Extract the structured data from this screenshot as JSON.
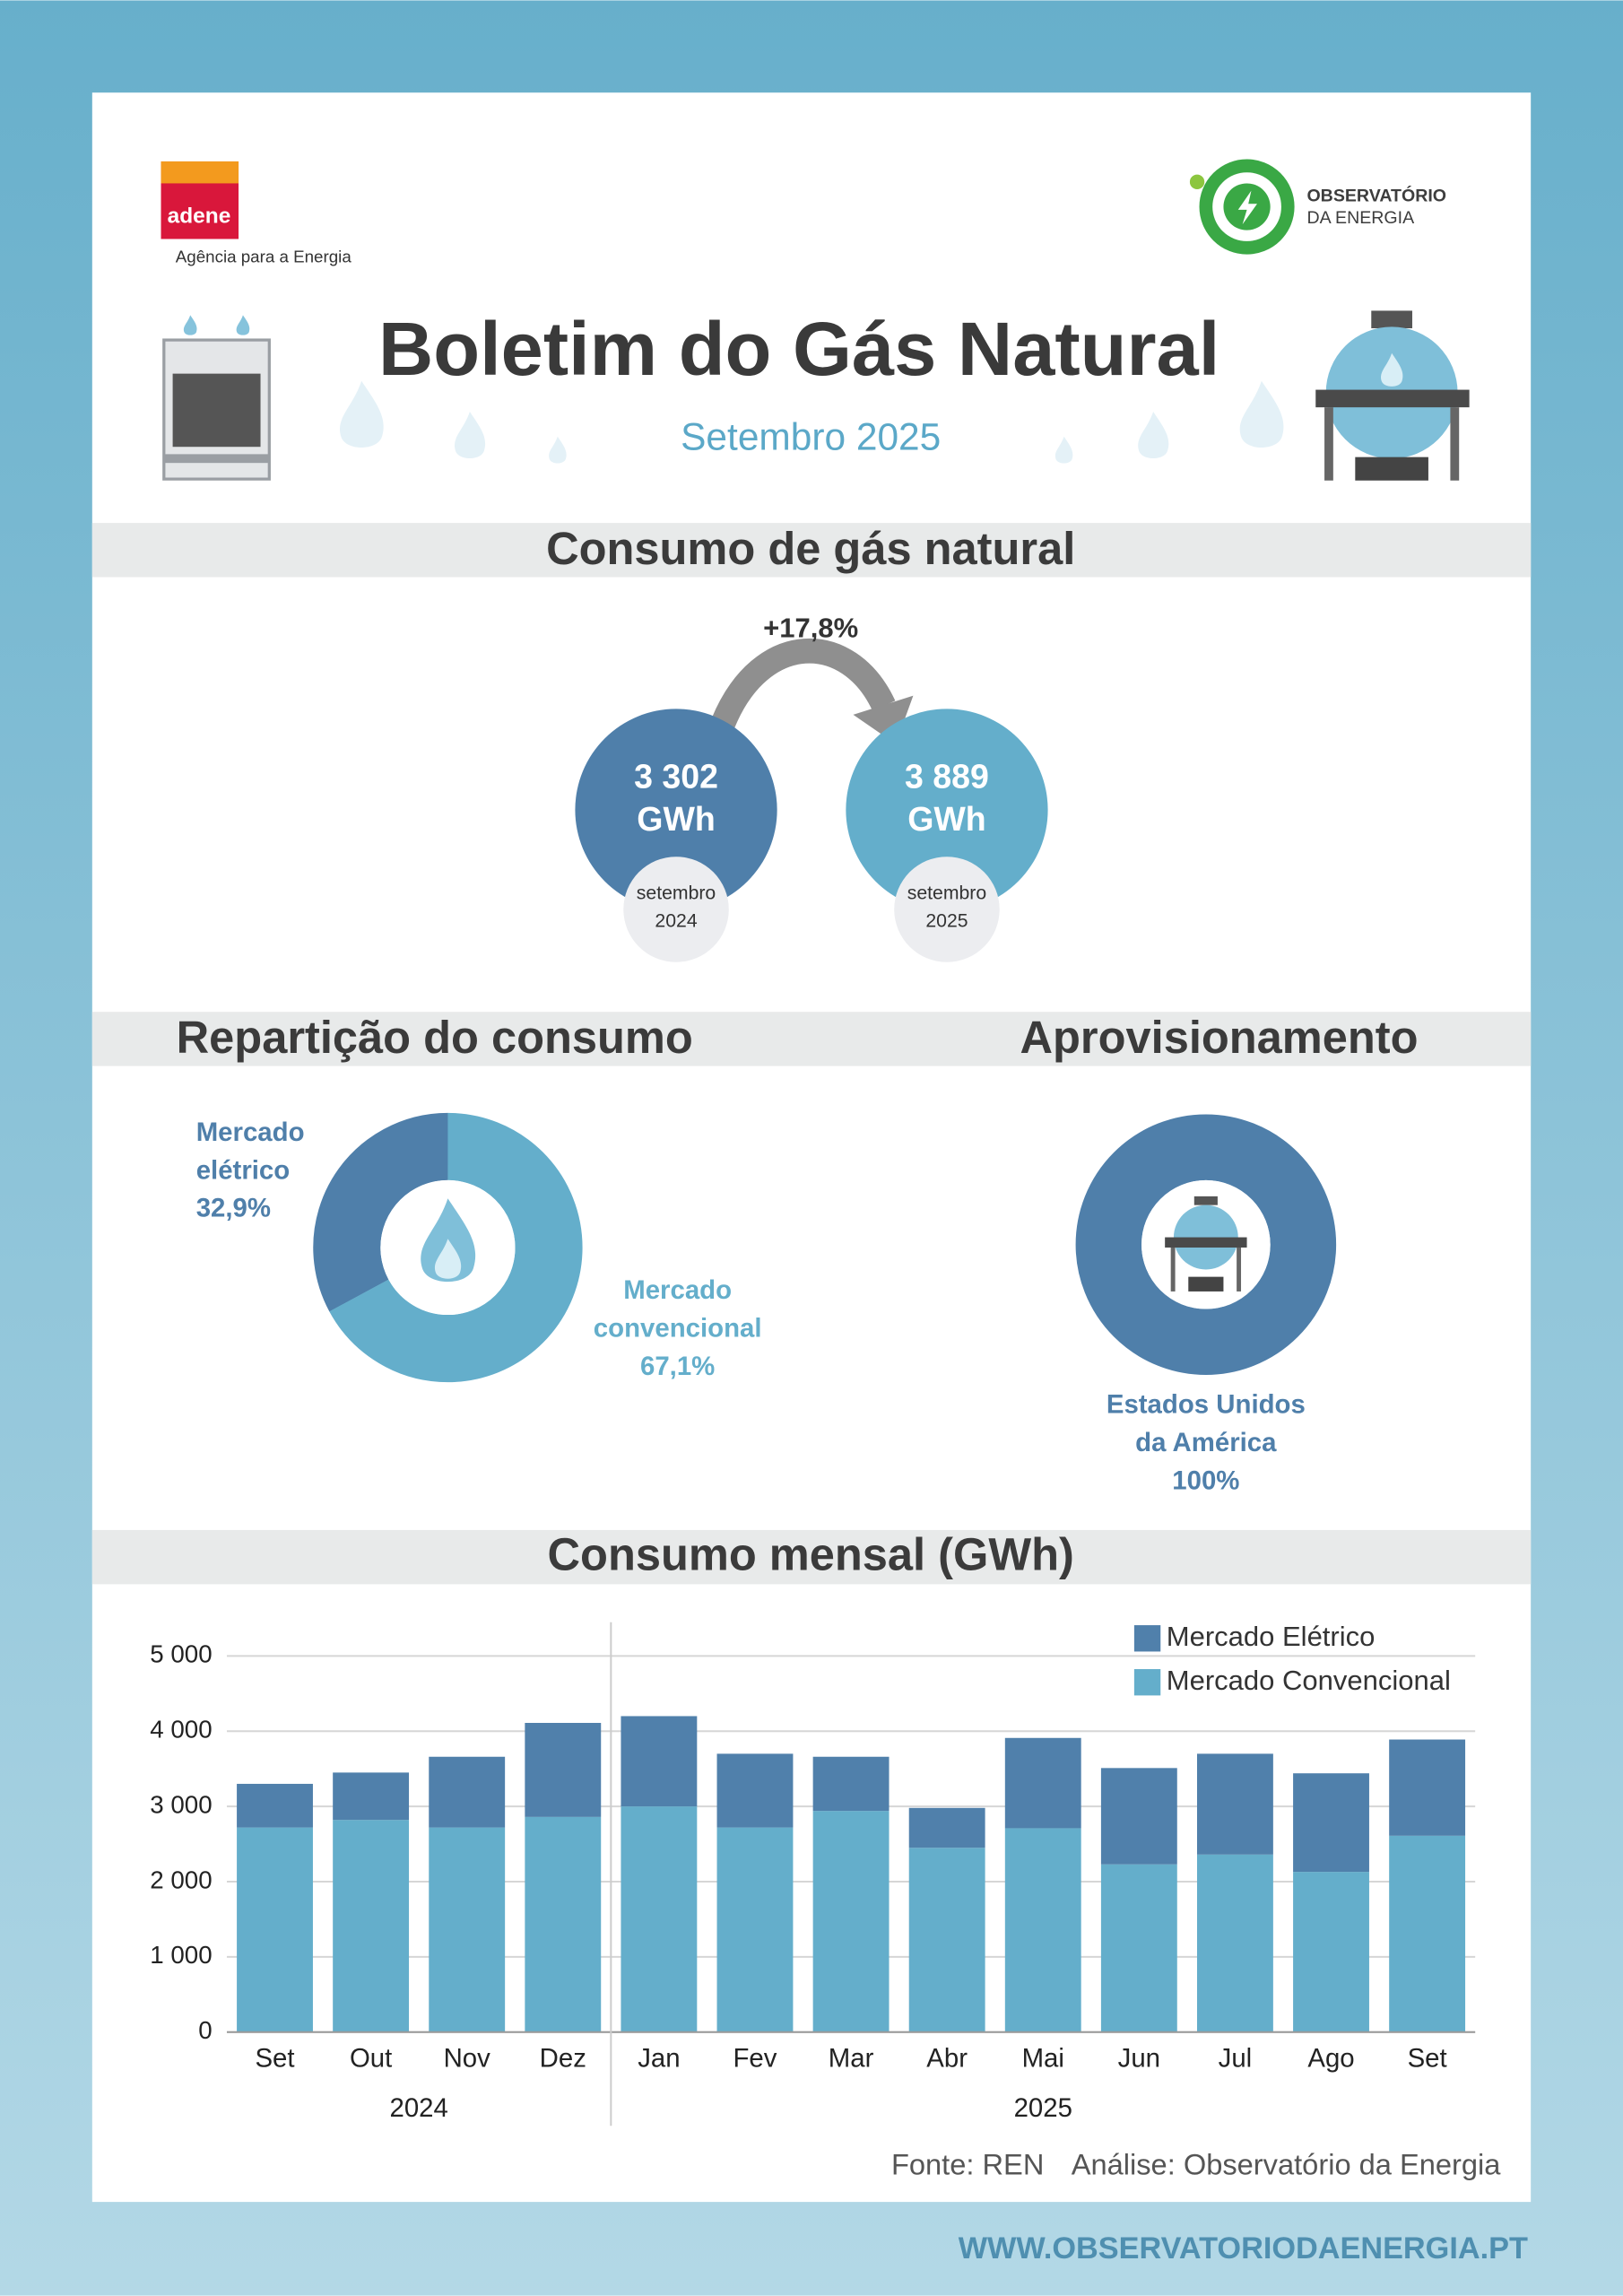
{
  "header": {
    "logo_left": {
      "name": "adene",
      "tagline": "Agência para a Energia"
    },
    "logo_right": {
      "line1": "OBSERVATÓRIO",
      "line2": "DA ENERGIA"
    },
    "title": "Boletim do Gás Natural",
    "subtitle": "Setembro 2025"
  },
  "sections": {
    "consumption": "Consumo de gás natural",
    "split": "Repartição do consumo",
    "supply": "Aprovisionamento",
    "monthly": "Consumo mensal (GWh)"
  },
  "kpi": {
    "change": "+17,8%",
    "items": [
      {
        "value": "3 302",
        "unit": "GWh",
        "period": "setembro 2024",
        "color": "#4f7faa"
      },
      {
        "value": "3 889",
        "unit": "GWh",
        "period": "setembro 2025",
        "color": "#64aecb"
      }
    ]
  },
  "chart_data": [
    {
      "type": "donut",
      "categories": [
        "Mercado elétrico",
        "Mercado convencional"
      ],
      "values": [
        32.9,
        67.1
      ],
      "value_labels": [
        "32,9%",
        "67,1%"
      ],
      "colors": [
        "#4f7faa",
        "#64aecb"
      ]
    },
    {
      "type": "donut",
      "categories": [
        "Estados Unidos da América"
      ],
      "values": [
        100
      ],
      "value_labels": [
        "100%"
      ],
      "colors": [
        "#4f7faa"
      ]
    },
    {
      "type": "bar",
      "stacked": true,
      "categories": [
        "Set",
        "Out",
        "Nov",
        "Dez",
        "Jan",
        "Fev",
        "Mar",
        "Abr",
        "Mai",
        "Jun",
        "Jul",
        "Ago",
        "Set"
      ],
      "x_groups": [
        {
          "label": "2024",
          "start": 0
        },
        {
          "label": "2025",
          "start": 4
        }
      ],
      "series": [
        {
          "name": "Mercado Convencional",
          "color": "#64aecb",
          "values": [
            2720,
            2820,
            2720,
            2860,
            3000,
            2720,
            2940,
            2450,
            2710,
            2230,
            2360,
            2130,
            2610
          ]
        },
        {
          "name": "Mercado Elétrico",
          "color": "#5080ab",
          "values": [
            580,
            630,
            940,
            1250,
            1200,
            980,
            720,
            530,
            1200,
            1280,
            1340,
            1310,
            1279
          ]
        }
      ],
      "ylim": [
        0,
        5000
      ],
      "yticks": [
        0,
        {
          "value": 1000,
          "label": "1 000"
        },
        {
          "value": 2000,
          "label": "2 000"
        },
        {
          "value": 3000,
          "label": "3 000"
        },
        {
          "value": 4000,
          "label": "4 000"
        },
        {
          "value": 5000,
          "label": "5 000"
        }
      ],
      "grid": true,
      "legend": "top-right"
    }
  ],
  "footer": {
    "source": "Fonte: REN",
    "analysis": "Análise: Observatório da Energia",
    "website": "WWW.OBSERVATORIODAENERGIA.PT"
  }
}
